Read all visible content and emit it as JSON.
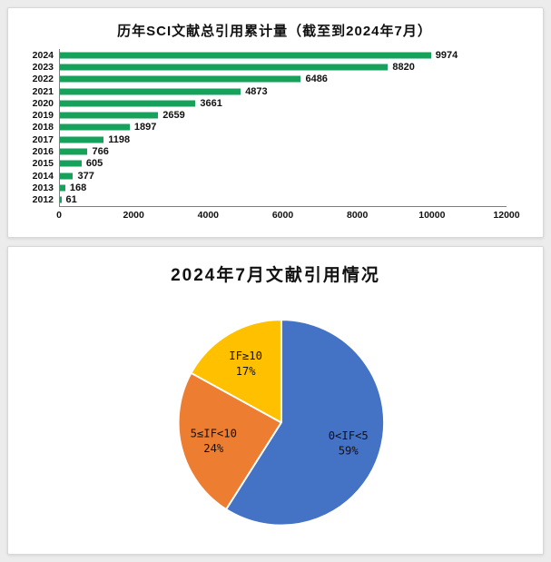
{
  "chart_data": [
    {
      "type": "bar",
      "orientation": "horizontal",
      "title": "历年SCI文献总引用累计量（截至到2024年7月）",
      "categories": [
        "2024",
        "2023",
        "2022",
        "2021",
        "2020",
        "2019",
        "2018",
        "2017",
        "2016",
        "2015",
        "2014",
        "2013",
        "2012"
      ],
      "values": [
        9974,
        8820,
        6486,
        4873,
        3661,
        2659,
        1897,
        1198,
        766,
        605,
        377,
        168,
        61
      ],
      "xlim": [
        0,
        12000
      ],
      "x_ticks": [
        0,
        2000,
        4000,
        6000,
        8000,
        10000,
        12000
      ],
      "bar_color": "#17a25c",
      "axis_color": "#7f7f7f",
      "grid": false,
      "value_labels": true,
      "legend": "none"
    },
    {
      "type": "pie",
      "title": "2024年7月文献引用情况",
      "start_angle_deg": 0,
      "direction": "clockwise",
      "slices": [
        {
          "label": "0<IF<5",
          "percent": 59,
          "color": "#4472c4"
        },
        {
          "label": "5≤IF<10",
          "percent": 24,
          "color": "#ed7d31"
        },
        {
          "label": "IF≥10",
          "percent": 17,
          "color": "#ffc000"
        }
      ],
      "legend": "none"
    }
  ]
}
